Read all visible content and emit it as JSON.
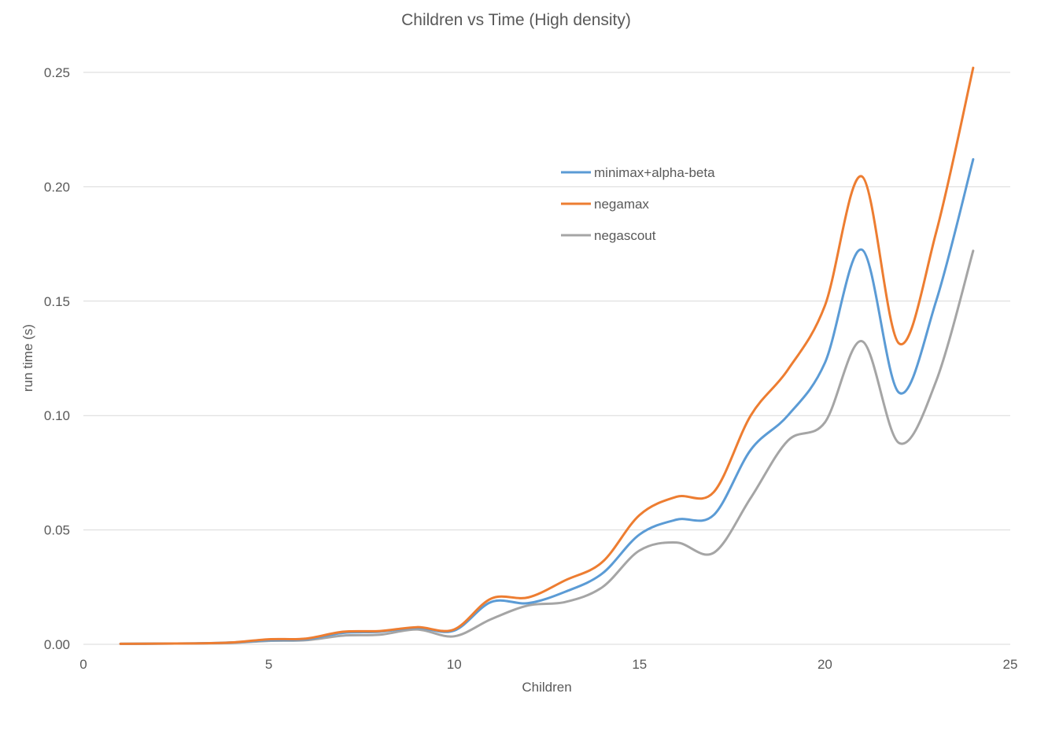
{
  "chart_data": {
    "type": "line",
    "title": "Children vs Time (High density)",
    "xlabel": "Children",
    "ylabel": "run time (s)",
    "xlim": [
      0,
      25
    ],
    "ylim": [
      0,
      0.25
    ],
    "xticks": [
      "0",
      "5",
      "10",
      "15",
      "20",
      "25"
    ],
    "yticks": [
      "0.00",
      "0.05",
      "0.10",
      "0.15",
      "0.20",
      "0.25"
    ],
    "grid": "horizontal",
    "legend_position": "upper-right",
    "x": [
      1,
      2,
      3,
      4,
      5,
      6,
      7,
      8,
      9,
      10,
      11,
      12,
      13,
      14,
      15,
      16,
      17,
      18,
      19,
      20,
      21,
      22,
      23,
      24
    ],
    "series": [
      {
        "name": "minimax+alpha-beta",
        "color": "#5b9bd5",
        "values": [
          0.0002,
          0.0003,
          0.0004,
          0.0008,
          0.0018,
          0.0022,
          0.005,
          0.0055,
          0.0072,
          0.006,
          0.0185,
          0.018,
          0.023,
          0.031,
          0.048,
          0.0545,
          0.0565,
          0.085,
          0.1,
          0.123,
          0.1725,
          0.11,
          0.15,
          0.212
        ]
      },
      {
        "name": "negamax",
        "color": "#ed7d31",
        "values": [
          0.0002,
          0.0003,
          0.0004,
          0.0008,
          0.0022,
          0.0025,
          0.0055,
          0.0058,
          0.0075,
          0.0065,
          0.02,
          0.0205,
          0.028,
          0.036,
          0.0565,
          0.0645,
          0.0665,
          0.1,
          0.12,
          0.148,
          0.2045,
          0.1315,
          0.18,
          0.252
        ]
      },
      {
        "name": "negascout",
        "color": "#a5a5a5",
        "values": [
          0.0002,
          0.0003,
          0.0004,
          0.0006,
          0.0015,
          0.0018,
          0.0038,
          0.0042,
          0.0065,
          0.0035,
          0.011,
          0.017,
          0.0185,
          0.025,
          0.041,
          0.0445,
          0.04,
          0.064,
          0.089,
          0.097,
          0.1325,
          0.088,
          0.115,
          0.172
        ]
      }
    ]
  }
}
